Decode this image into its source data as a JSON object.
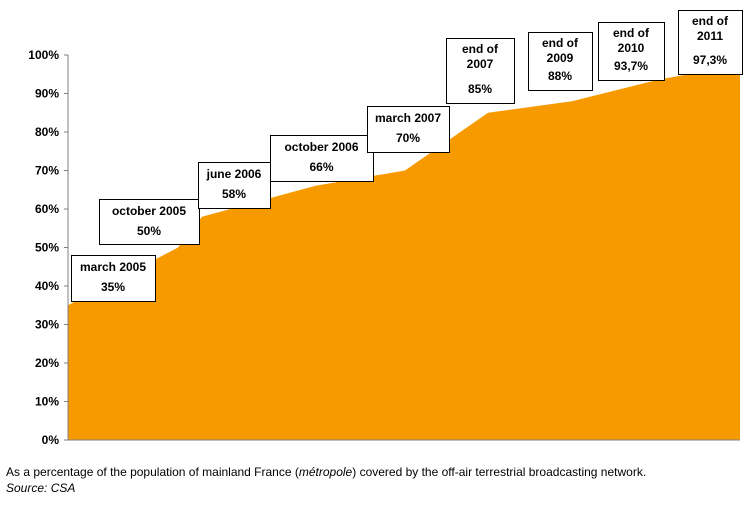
{
  "chart_data": {
    "type": "area",
    "title": "",
    "xlabel": "",
    "ylabel": "",
    "ylim": [
      0,
      100
    ],
    "yticks": [
      "0%",
      "10%",
      "20%",
      "30%",
      "40%",
      "50%",
      "60%",
      "70%",
      "80%",
      "90%",
      "100%"
    ],
    "color": "#F79A00",
    "grid": false,
    "points": [
      {
        "x": "march 2005",
        "y": 35,
        "label_lines": [
          "march 2005"
        ],
        "value_label": "35%"
      },
      {
        "x": "october 2005",
        "y": 50,
        "label_lines": [
          "october 2005"
        ],
        "value_label": "50%"
      },
      {
        "x": "june 2006",
        "y": 58,
        "label_lines": [
          "june 2006"
        ],
        "value_label": "58%"
      },
      {
        "x": "october 2006",
        "y": 66,
        "label_lines": [
          "october 2006"
        ],
        "value_label": "66%"
      },
      {
        "x": "march 2007",
        "y": 70,
        "label_lines": [
          "march 2007"
        ],
        "value_label": "70%"
      },
      {
        "x": "end of 2007",
        "y": 85,
        "label_lines": [
          "end of",
          "2007"
        ],
        "value_label": "85%"
      },
      {
        "x": "end of 2009",
        "y": 88,
        "label_lines": [
          "end of",
          "2009"
        ],
        "value_label": "88%"
      },
      {
        "x": "end of 2010",
        "y": 93.7,
        "label_lines": [
          "end of",
          "2010"
        ],
        "value_label": "93,7%"
      },
      {
        "x": "end of 2011",
        "y": 97.3,
        "label_lines": [
          "end of",
          "2011"
        ],
        "value_label": "97,3%"
      }
    ]
  },
  "caption": {
    "text_before": "As a percentage of the population of mainland France (",
    "text_italic": "métropole",
    "text_after": ") covered by the off-air terrestrial broadcasting network.",
    "source": "Source: CSA"
  }
}
